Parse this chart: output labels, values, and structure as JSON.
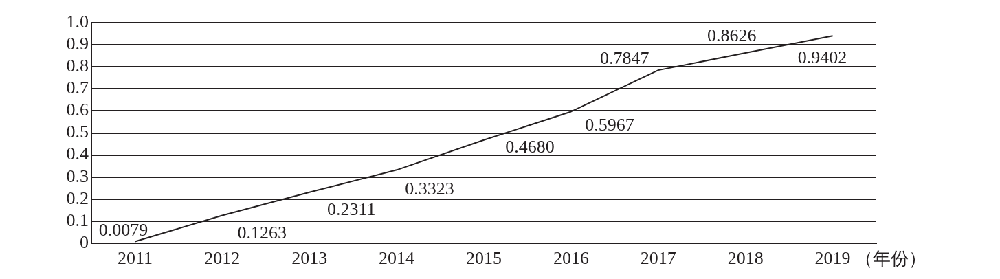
{
  "chart_data": {
    "type": "line",
    "xlabel": "（年份）",
    "categories": [
      "2011",
      "2012",
      "2013",
      "2014",
      "2015",
      "2016",
      "2017",
      "2018",
      "2019"
    ],
    "series": [
      {
        "color": "#231f20",
        "values": [
          0.0079,
          0.1263,
          0.2311,
          0.3323,
          0.468,
          0.5967,
          0.7847,
          0.8626,
          0.9402
        ],
        "value_labels": [
          "0.0079",
          "0.1263",
          "0.2311",
          "0.3323",
          "0.4680",
          "0.5967",
          "0.7847",
          "0.8626",
          "0.9402"
        ]
      }
    ],
    "ylim": [
      0,
      1
    ],
    "yticks": [
      0,
      0.1,
      0.2,
      0.3,
      0.4,
      0.5,
      0.6,
      0.7,
      0.8,
      0.9,
      {
        "value": 1,
        "label": "1.0"
      }
    ],
    "grid": "y",
    "legend": false,
    "marker": "none",
    "line_style": "solid"
  }
}
